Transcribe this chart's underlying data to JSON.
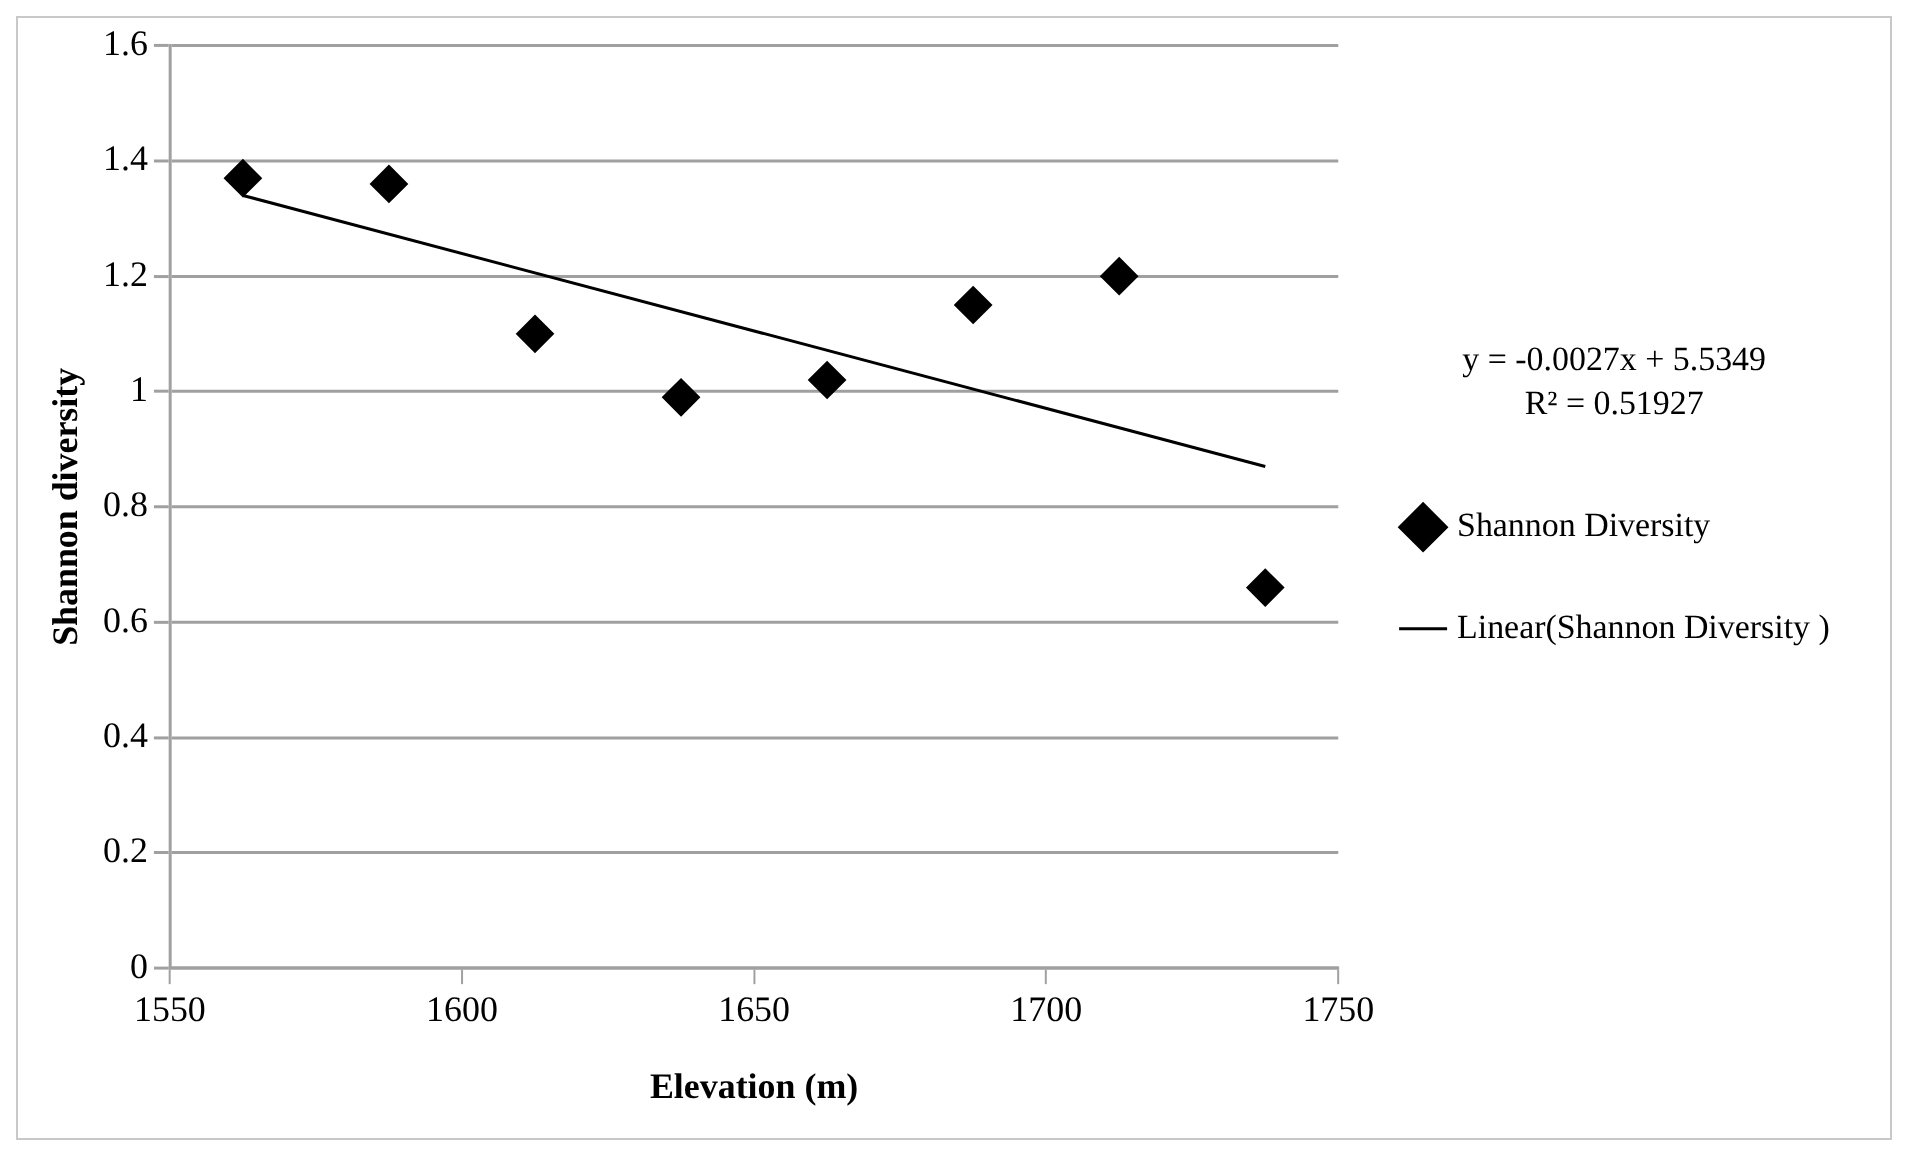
{
  "chart_data": {
    "type": "scatter",
    "xlabel": "Elevation (m)",
    "ylabel": "Shannon diversity",
    "x": [
      1562.5,
      1587.5,
      1612.5,
      1637.5,
      1662.5,
      1687.5,
      1712.5,
      1737.5
    ],
    "series": [
      {
        "name": "Shannon Diversity",
        "color": "#000000",
        "marker": "diamond",
        "values": [
          1.37,
          1.36,
          1.1,
          0.99,
          1.02,
          1.15,
          1.2,
          0.66
        ]
      },
      {
        "name": "Linear(Shannon Diversity )",
        "type": "line",
        "color": "#000000",
        "marker": "none",
        "line_style": "solid",
        "x": [
          1562.5,
          1737.5
        ],
        "values": [
          1.34,
          0.87
        ]
      }
    ],
    "xlim": [
      1550,
      1750
    ],
    "xticks": [
      1550,
      1600,
      1650,
      1700,
      1750
    ],
    "ylim": [
      0,
      1.6
    ],
    "yticks": [
      0,
      0.2,
      0.4,
      0.6,
      0.8,
      1,
      1.2,
      1.4,
      1.6
    ],
    "grid": "y",
    "legend": "right",
    "annotations": [
      "y = -0.0027x + 5.5349",
      "R² = 0.51927"
    ]
  }
}
